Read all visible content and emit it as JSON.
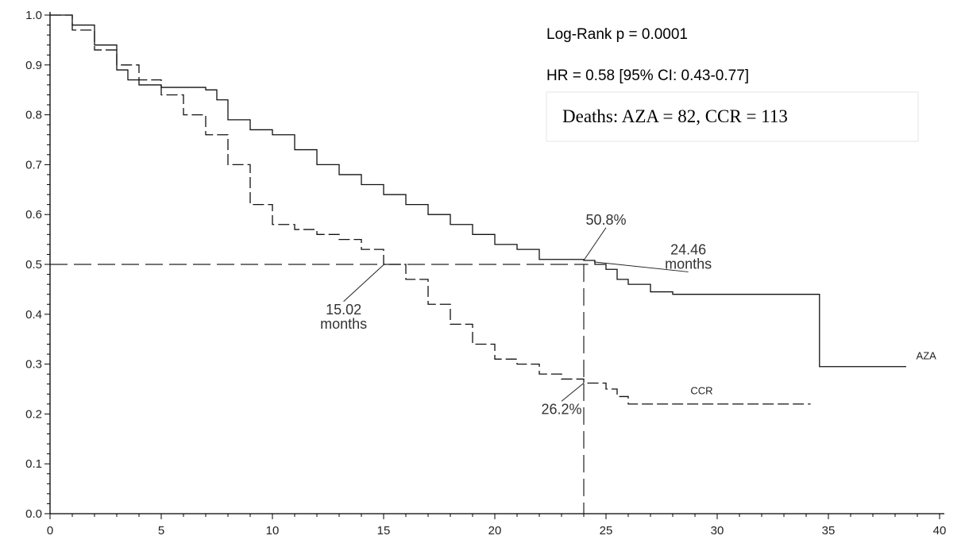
{
  "chart_data": {
    "type": "line",
    "subtype": "kaplan-meier",
    "title": "",
    "xlabel": "",
    "ylabel": "",
    "xlim": [
      0,
      40
    ],
    "ylim": [
      0,
      1.0
    ],
    "x_ticks": [
      0,
      5,
      10,
      15,
      20,
      25,
      30,
      35,
      40
    ],
    "y_ticks": [
      "0.0",
      "0.1",
      "0.2",
      "0.3",
      "0.4",
      "0.5",
      "0.6",
      "0.7",
      "0.8",
      "0.9",
      "1.0"
    ],
    "grid": false,
    "legend": "none",
    "series": [
      {
        "name": "AZA",
        "style": "solid",
        "x": [
          0,
          1,
          2,
          3,
          3.5,
          4,
          5,
          6,
          7,
          7.5,
          8,
          9,
          10,
          11,
          12,
          13,
          14,
          15,
          16,
          17,
          18,
          19,
          20,
          21,
          22,
          23,
          24,
          24.5,
          25,
          25.5,
          26,
          27,
          28,
          30,
          32,
          34,
          34.6,
          34.6,
          38.5
        ],
        "y": [
          1.0,
          0.98,
          0.94,
          0.89,
          0.87,
          0.86,
          0.855,
          0.855,
          0.85,
          0.83,
          0.79,
          0.77,
          0.76,
          0.73,
          0.7,
          0.68,
          0.66,
          0.64,
          0.62,
          0.6,
          0.58,
          0.56,
          0.54,
          0.53,
          0.51,
          0.51,
          0.508,
          0.5,
          0.49,
          0.47,
          0.46,
          0.445,
          0.44,
          0.44,
          0.44,
          0.44,
          0.44,
          0.295,
          0.295
        ]
      },
      {
        "name": "CCR",
        "style": "dashed",
        "x": [
          0,
          1,
          2,
          3,
          4,
          5,
          6,
          7,
          8,
          9,
          10,
          11,
          12,
          13,
          14,
          15,
          16,
          17,
          18,
          19,
          20,
          21,
          22,
          23,
          24,
          25,
          25.5,
          26,
          28,
          30,
          32,
          34.2
        ],
        "y": [
          1.0,
          0.97,
          0.93,
          0.9,
          0.87,
          0.84,
          0.8,
          0.76,
          0.7,
          0.62,
          0.58,
          0.57,
          0.56,
          0.55,
          0.53,
          0.5,
          0.47,
          0.42,
          0.38,
          0.34,
          0.31,
          0.3,
          0.28,
          0.27,
          0.262,
          0.25,
          0.235,
          0.22,
          0.22,
          0.22,
          0.22,
          0.22
        ]
      }
    ],
    "series_labels": [
      {
        "text": "AZA",
        "x": 39.4,
        "y": 0.31
      },
      {
        "text": "CCR",
        "x": 29.3,
        "y": 0.24
      }
    ],
    "reference_lines": {
      "median_y": 0.5,
      "median_y_xmax": 24.2,
      "vertical_x": 24.0
    },
    "annotations": [
      {
        "text": [
          "15.02",
          "months"
        ],
        "x": 15.02,
        "y": 0.5,
        "label_x": 13.2,
        "label_y": 0.4
      },
      {
        "text": [
          "24.46",
          "months"
        ],
        "x": 24.46,
        "y": 0.505,
        "label_x": 28.7,
        "label_y": 0.52
      },
      {
        "text": [
          "50.8%"
        ],
        "x": 24.0,
        "y": 0.508,
        "label_x": 25.0,
        "label_y": 0.58
      },
      {
        "text": [
          "26.2%"
        ],
        "x": 24.0,
        "y": 0.262,
        "label_x": 23.0,
        "label_y": 0.2
      }
    ]
  },
  "stats": {
    "log_rank": "Log-Rank p = 0.0001",
    "hr": "HR = 0.58 [95% CI: 0.43-0.77]",
    "deaths": "Deaths: AZA = 82, CCR = 113"
  }
}
